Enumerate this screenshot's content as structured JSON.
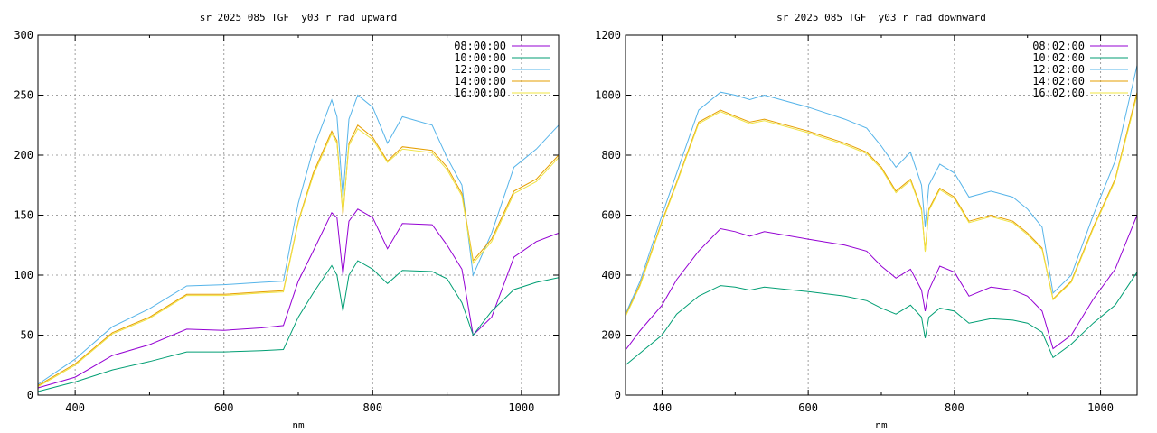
{
  "chart_data": [
    {
      "type": "line",
      "title": "sr_2025_085_TGF__y03_r_rad_upward",
      "xlabel": "nm",
      "ylabel": "",
      "xlim": [
        350,
        1050
      ],
      "ylim": [
        0,
        300
      ],
      "xticks": [
        400,
        600,
        800,
        1000
      ],
      "yticks": [
        0,
        50,
        100,
        150,
        200,
        250,
        300
      ],
      "grid": true,
      "legend_position": "top-right",
      "x": [
        350,
        400,
        450,
        500,
        550,
        600,
        650,
        680,
        700,
        720,
        745,
        752,
        760,
        768,
        780,
        800,
        820,
        840,
        880,
        900,
        920,
        935,
        960,
        990,
        1020,
        1050
      ],
      "series": [
        {
          "name": "08:00:00",
          "color": "#9400d3",
          "values": [
            6,
            15,
            33,
            42,
            55,
            54,
            56,
            58,
            95,
            120,
            152,
            148,
            100,
            145,
            155,
            148,
            122,
            143,
            142,
            125,
            105,
            50,
            65,
            115,
            128,
            135
          ]
        },
        {
          "name": "10:00:00",
          "color": "#009e73",
          "values": [
            3,
            11,
            21,
            28,
            36,
            36,
            37,
            38,
            65,
            85,
            108,
            100,
            70,
            100,
            112,
            105,
            93,
            104,
            103,
            97,
            77,
            50,
            70,
            88,
            94,
            98
          ]
        },
        {
          "name": "12:00:00",
          "color": "#56b4e9",
          "values": [
            9,
            30,
            57,
            72,
            91,
            92,
            94,
            95,
            160,
            205,
            246,
            232,
            165,
            230,
            250,
            240,
            210,
            232,
            225,
            198,
            175,
            100,
            135,
            190,
            205,
            225
          ]
        },
        {
          "name": "14:00:00",
          "color": "#e69f00",
          "values": [
            8,
            26,
            52,
            65,
            84,
            84,
            86,
            87,
            145,
            185,
            220,
            212,
            150,
            210,
            225,
            215,
            195,
            207,
            204,
            190,
            168,
            112,
            130,
            170,
            180,
            200
          ]
        },
        {
          "name": "16:00:00",
          "color": "#f0e442",
          "values": [
            7,
            25,
            51,
            64,
            83,
            83,
            85,
            86,
            144,
            183,
            218,
            210,
            152,
            208,
            222,
            213,
            194,
            205,
            202,
            188,
            166,
            110,
            128,
            168,
            178,
            198
          ]
        }
      ]
    },
    {
      "type": "line",
      "title": "sr_2025_085_TGF__y03_r_rad_downward",
      "xlabel": "nm",
      "ylabel": "",
      "xlim": [
        350,
        1050
      ],
      "ylim": [
        0,
        1200
      ],
      "xticks": [
        400,
        600,
        800,
        1000
      ],
      "yticks": [
        0,
        200,
        400,
        600,
        800,
        1000,
        1200
      ],
      "grid": true,
      "legend_position": "top-right",
      "x": [
        350,
        370,
        400,
        420,
        450,
        480,
        500,
        520,
        540,
        600,
        650,
        680,
        700,
        720,
        740,
        755,
        760,
        765,
        780,
        800,
        820,
        850,
        880,
        900,
        920,
        935,
        960,
        990,
        1020,
        1050
      ],
      "series": [
        {
          "name": "08:02:00",
          "color": "#9400d3",
          "values": [
            150,
            215,
            300,
            385,
            480,
            555,
            545,
            530,
            545,
            520,
            500,
            480,
            430,
            390,
            420,
            350,
            280,
            350,
            430,
            410,
            330,
            360,
            350,
            330,
            280,
            155,
            200,
            320,
            420,
            600
          ]
        },
        {
          "name": "10:02:00",
          "color": "#009e73",
          "values": [
            100,
            140,
            200,
            270,
            330,
            365,
            360,
            350,
            360,
            345,
            330,
            315,
            290,
            270,
            300,
            260,
            190,
            260,
            290,
            280,
            240,
            255,
            250,
            240,
            210,
            125,
            170,
            240,
            300,
            410
          ]
        },
        {
          "name": "12:02:00",
          "color": "#56b4e9",
          "values": [
            270,
            380,
            600,
            740,
            950,
            1010,
            1000,
            985,
            1000,
            960,
            920,
            890,
            830,
            760,
            810,
            700,
            560,
            700,
            770,
            740,
            660,
            680,
            660,
            620,
            560,
            340,
            400,
            600,
            780,
            1100
          ]
        },
        {
          "name": "14:02:00",
          "color": "#e69f00",
          "values": [
            265,
            370,
            580,
            710,
            910,
            950,
            930,
            910,
            920,
            880,
            840,
            810,
            760,
            680,
            720,
            620,
            480,
            620,
            690,
            660,
            580,
            600,
            580,
            540,
            490,
            320,
            380,
            560,
            720,
            1010
          ]
        },
        {
          "name": "16:02:00",
          "color": "#f0e442",
          "values": [
            262,
            365,
            575,
            705,
            905,
            945,
            925,
            905,
            915,
            875,
            835,
            805,
            755,
            675,
            715,
            615,
            478,
            615,
            685,
            655,
            575,
            595,
            575,
            535,
            485,
            318,
            376,
            555,
            715,
            1000
          ]
        }
      ]
    }
  ]
}
